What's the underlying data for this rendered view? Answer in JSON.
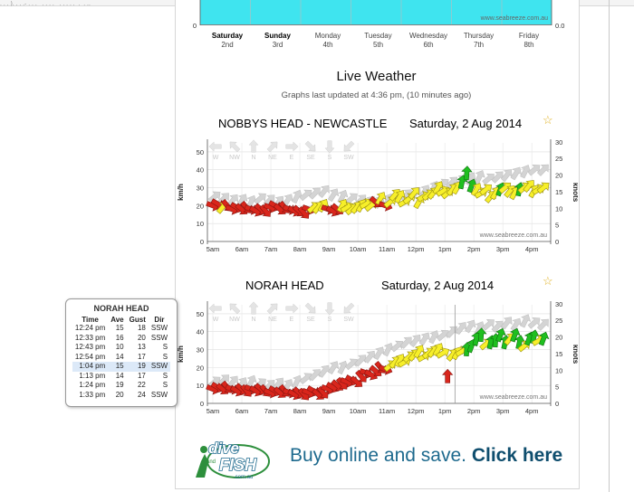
{
  "forecast": {
    "watermark": "www.seabreeze.com.au",
    "zero_left": "0",
    "zero_right": "0.0",
    "days": [
      {
        "day": "Saturday",
        "date": "2nd",
        "bold": true
      },
      {
        "day": "Sunday",
        "date": "3rd",
        "bold": true
      },
      {
        "day": "Monday",
        "date": "4th",
        "bold": false
      },
      {
        "day": "Tuesday",
        "date": "5th",
        "bold": false
      },
      {
        "day": "Wednesday",
        "date": "6th",
        "bold": false
      },
      {
        "day": "Thursday",
        "date": "7th",
        "bold": false
      },
      {
        "day": "Friday",
        "date": "8th",
        "bold": false
      }
    ]
  },
  "live": {
    "title": "Live Weather",
    "updated": "Graphs last updated at 4:36 pm, (10 minutes ago)"
  },
  "stations": [
    {
      "name": "NOBBYS HEAD - NEWCASTLE",
      "date": "Saturday, 2 Aug 2014",
      "watermark": "www.seabreeze.com.au",
      "dir_labels": [
        "W",
        "NW",
        "N",
        "NE",
        "E",
        "SE",
        "S",
        "SW"
      ],
      "y_left_label": "km/h",
      "y_right_label": "knots",
      "y_left_ticks": [
        "50",
        "40",
        "30",
        "20",
        "10",
        "0"
      ],
      "y_right_ticks": [
        "30",
        "25",
        "20",
        "15",
        "10",
        "5",
        "0"
      ],
      "x_ticks": [
        "5am",
        "6am",
        "7am",
        "8am",
        "9am",
        "10am",
        "11am",
        "12pm",
        "1pm",
        "2pm",
        "3pm",
        "4pm"
      ],
      "speeds": [
        20,
        21,
        19,
        20,
        18,
        19,
        18,
        19,
        18,
        17,
        18,
        17,
        19,
        20,
        18,
        19,
        18,
        17,
        17,
        16,
        18,
        19,
        19,
        20,
        18,
        17,
        18,
        20,
        19,
        18,
        19,
        20,
        21,
        20,
        22,
        24,
        20,
        22,
        26,
        25,
        22,
        24,
        27,
        22,
        25,
        26,
        27,
        30,
        28,
        27,
        29,
        30,
        33,
        38,
        31,
        29,
        27,
        29,
        25,
        27,
        29,
        30,
        28,
        27,
        29,
        30,
        31,
        28,
        29,
        30
      ],
      "colors": [
        "r",
        "r",
        "y",
        "r",
        "r",
        "r",
        "r",
        "r",
        "r",
        "r",
        "r",
        "r",
        "r",
        "r",
        "r",
        "r",
        "r",
        "r",
        "r",
        "r",
        "r",
        "y",
        "y",
        "y",
        "r",
        "r",
        "r",
        "y",
        "y",
        "y",
        "y",
        "y",
        "y",
        "y",
        "r",
        "y",
        "r",
        "y",
        "y",
        "y",
        "y",
        "y",
        "y",
        "y",
        "y",
        "y",
        "y",
        "y",
        "y",
        "y",
        "y",
        "y",
        "g",
        "g",
        "g",
        "y",
        "y",
        "y",
        "y",
        "y",
        "g",
        "y",
        "y",
        "y",
        "g",
        "y",
        "y",
        "y",
        "y",
        "y"
      ],
      "ghost_speeds": [
        25,
        24,
        23,
        23,
        22,
        24,
        23,
        22,
        23,
        25,
        26,
        27,
        28,
        26,
        25,
        24,
        23,
        22,
        22,
        23,
        25,
        26,
        27,
        28,
        30,
        32,
        33,
        34,
        35,
        36,
        35,
        36,
        37,
        38,
        39,
        40,
        40
      ]
    },
    {
      "name": "NORAH HEAD",
      "date": "Saturday, 2 Aug 2014",
      "watermark": "www.seabreeze.com.au",
      "dir_labels": [
        "W",
        "NW",
        "N",
        "NE",
        "E",
        "SE",
        "S",
        "SW"
      ],
      "y_left_label": "km/h",
      "y_right_label": "knots",
      "y_left_ticks": [
        "50",
        "40",
        "30",
        "20",
        "10",
        "0"
      ],
      "y_right_ticks": [
        "30",
        "25",
        "20",
        "15",
        "10",
        "5",
        "0"
      ],
      "x_ticks": [
        "5am",
        "6am",
        "7am",
        "8am",
        "9am",
        "10am",
        "11am",
        "12pm",
        "1pm",
        "2pm",
        "3pm",
        "4pm"
      ],
      "speeds": [
        8,
        9,
        8,
        9,
        8,
        7,
        8,
        7,
        8,
        7,
        8,
        7,
        6,
        7,
        6,
        7,
        6,
        5,
        6,
        5,
        6,
        7,
        5,
        6,
        8,
        9,
        10,
        11,
        12,
        13,
        12,
        15,
        17,
        16,
        18,
        20,
        19,
        21,
        23,
        24,
        23,
        26,
        27,
        29,
        26,
        28,
        29,
        30,
        28,
        15,
        27,
        28,
        29,
        30,
        32,
        36,
        38,
        33,
        34,
        35,
        38,
        34,
        36,
        38,
        34,
        32,
        36,
        37,
        35,
        36
      ],
      "colors": [
        "r",
        "r",
        "r",
        "r",
        "r",
        "r",
        "r",
        "r",
        "r",
        "r",
        "r",
        "r",
        "r",
        "r",
        "r",
        "r",
        "r",
        "r",
        "r",
        "r",
        "r",
        "r",
        "r",
        "r",
        "r",
        "r",
        "r",
        "r",
        "r",
        "r",
        "r",
        "r",
        "r",
        "r",
        "r",
        "r",
        "r",
        "y",
        "y",
        "y",
        "y",
        "y",
        "y",
        "y",
        "y",
        "y",
        "y",
        "y",
        "y",
        "r",
        "y",
        "y",
        "y",
        "g",
        "g",
        "g",
        "g",
        "y",
        "g",
        "g",
        "g",
        "g",
        "y",
        "g",
        "g",
        "y",
        "g",
        "g",
        "y",
        "g"
      ],
      "ghost_speeds": [
        12,
        13,
        12,
        11,
        12,
        11,
        10,
        11,
        10,
        12,
        14,
        16,
        18,
        20,
        20,
        22,
        24,
        26,
        28,
        30,
        32,
        34,
        35,
        36,
        37,
        38,
        40,
        42,
        43,
        42,
        44,
        43,
        45,
        44,
        46,
        45,
        44
      ]
    }
  ],
  "tooltip": {
    "title": "NORAH HEAD",
    "headers": [
      "Time",
      "Ave",
      "Gust",
      "Dir"
    ],
    "rows": [
      [
        "12:24 pm",
        "15",
        "18",
        "SSW"
      ],
      [
        "12:33 pm",
        "16",
        "20",
        "SSW"
      ],
      [
        "12:43 pm",
        "10",
        "13",
        "S"
      ],
      [
        "12:54 pm",
        "14",
        "17",
        "S"
      ],
      [
        "1:04 pm",
        "15",
        "19",
        "SSW"
      ],
      [
        "1:13 pm",
        "14",
        "17",
        "S"
      ],
      [
        "1:24 pm",
        "19",
        "22",
        "S"
      ],
      [
        "1:33 pm",
        "20",
        "24",
        "SSW"
      ]
    ],
    "highlight_row": 4
  },
  "ad": {
    "logo_line1": "dive",
    "logo_and": "and",
    "logo_line2": "FISH",
    "logo_domain": ".com.au",
    "text_normal": "Buy online and save.",
    "text_bold": "Click here"
  },
  "colors": {
    "red": "#d9261c",
    "yellow": "#f7ef2a",
    "green": "#1fbf1f",
    "ghost": "#d4d4d4",
    "forecast_fill": "#3fe4ef",
    "ad_blue": "#1e6a8e"
  }
}
